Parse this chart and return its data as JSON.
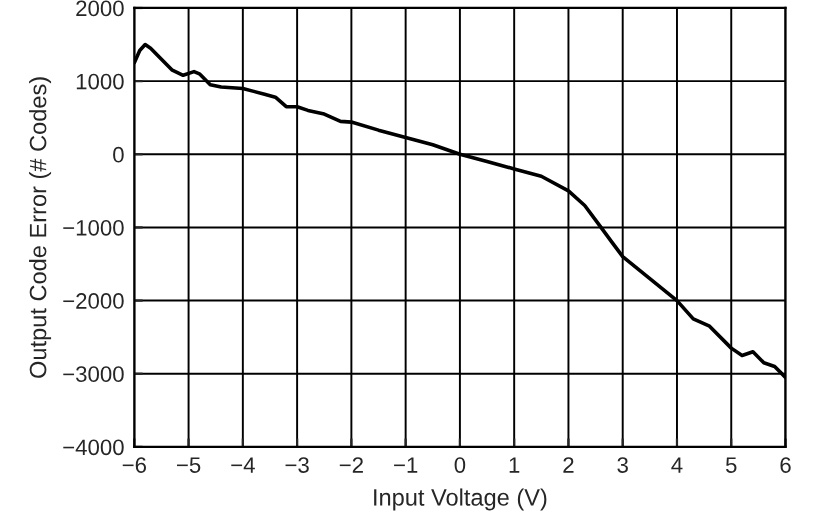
{
  "chart_data": {
    "type": "line",
    "xlabel": "Input Voltage (V)",
    "ylabel": "Output Code Error (# Codes)",
    "x": [
      -6,
      -5.9,
      -5.8,
      -5.7,
      -5.5,
      -5.3,
      -5.1,
      -4.9,
      -4.8,
      -4.6,
      -4.4,
      -4.0,
      -3.8,
      -3.6,
      -3.4,
      -3.2,
      -3.0,
      -2.8,
      -2.5,
      -2.2,
      -2.0,
      -1.5,
      -1.0,
      -0.5,
      0,
      0.5,
      1.0,
      1.5,
      2.0,
      2.3,
      2.6,
      2.8,
      3.0,
      3.5,
      4.0,
      4.3,
      4.6,
      5.0,
      5.2,
      5.4,
      5.6,
      5.8,
      6.0
    ],
    "series": [
      {
        "color": "#000000",
        "values": [
          1250,
          1420,
          1500,
          1450,
          1300,
          1150,
          1080,
          1130,
          1100,
          950,
          920,
          900,
          860,
          820,
          780,
          650,
          650,
          600,
          550,
          450,
          440,
          330,
          230,
          130,
          0,
          -100,
          -200,
          -300,
          -500,
          -700,
          -1000,
          -1200,
          -1400,
          -1700,
          -2000,
          -2250,
          -2350,
          -2650,
          -2750,
          -2700,
          -2850,
          -2900,
          -3050
        ]
      }
    ],
    "xlim": [
      -6,
      6
    ],
    "ylim": [
      -4000,
      2000
    ],
    "xticks": [
      {
        "value": -6,
        "label": "−6"
      },
      {
        "value": -5,
        "label": "−5"
      },
      {
        "value": -4,
        "label": "−4"
      },
      {
        "value": -3,
        "label": "−3"
      },
      {
        "value": -2,
        "label": "−2"
      },
      {
        "value": -1,
        "label": "−1"
      },
      0,
      1,
      2,
      3,
      4,
      5,
      6
    ],
    "yticks": [
      {
        "value": -4000,
        "label": "−4000"
      },
      {
        "value": -3000,
        "label": "−3000"
      },
      {
        "value": -2000,
        "label": "−2000"
      },
      {
        "value": -1000,
        "label": "−1000"
      },
      0,
      1000,
      2000
    ],
    "grid": true,
    "marker": "none",
    "line_style": "solid"
  }
}
